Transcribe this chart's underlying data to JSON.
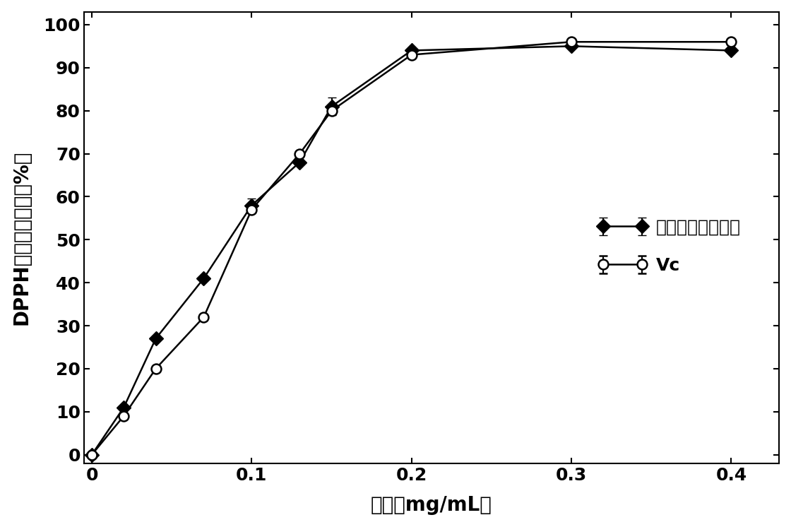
{
  "procyanidin_x": [
    0,
    0.02,
    0.04,
    0.07,
    0.1,
    0.13,
    0.15,
    0.2,
    0.3,
    0.4
  ],
  "procyanidin_y": [
    0,
    11,
    27,
    41,
    58,
    68,
    81,
    94,
    95,
    94
  ],
  "procyanidin_yerr": [
    0,
    0.5,
    0.5,
    0.5,
    1.5,
    0.5,
    2.0,
    0.5,
    0.5,
    0.5
  ],
  "vc_x": [
    0,
    0.02,
    0.04,
    0.07,
    0.1,
    0.13,
    0.15,
    0.2,
    0.3,
    0.4
  ],
  "vc_y": [
    0,
    9,
    20,
    32,
    57,
    70,
    80,
    93,
    96,
    96
  ],
  "vc_yerr": [
    0,
    0.3,
    0.3,
    0.3,
    0.3,
    0.3,
    0.3,
    0.3,
    0.3,
    0.3
  ],
  "xlabel": "浓度（mg/mL）",
  "ylabel": "DPPH自由基清除率（%）",
  "legend_procyanidin": "龙眼皮渣原花青素",
  "legend_vc": "Vc",
  "xlim": [
    -0.005,
    0.43
  ],
  "ylim": [
    -2,
    103
  ],
  "xticks": [
    0,
    0.1,
    0.2,
    0.3,
    0.4
  ],
  "yticks": [
    0,
    10,
    20,
    30,
    40,
    50,
    60,
    70,
    80,
    90,
    100
  ],
  "line_color": "#000000",
  "bg_color": "#ffffff",
  "font_size_tick": 18,
  "font_size_label": 20,
  "font_size_legend": 18
}
